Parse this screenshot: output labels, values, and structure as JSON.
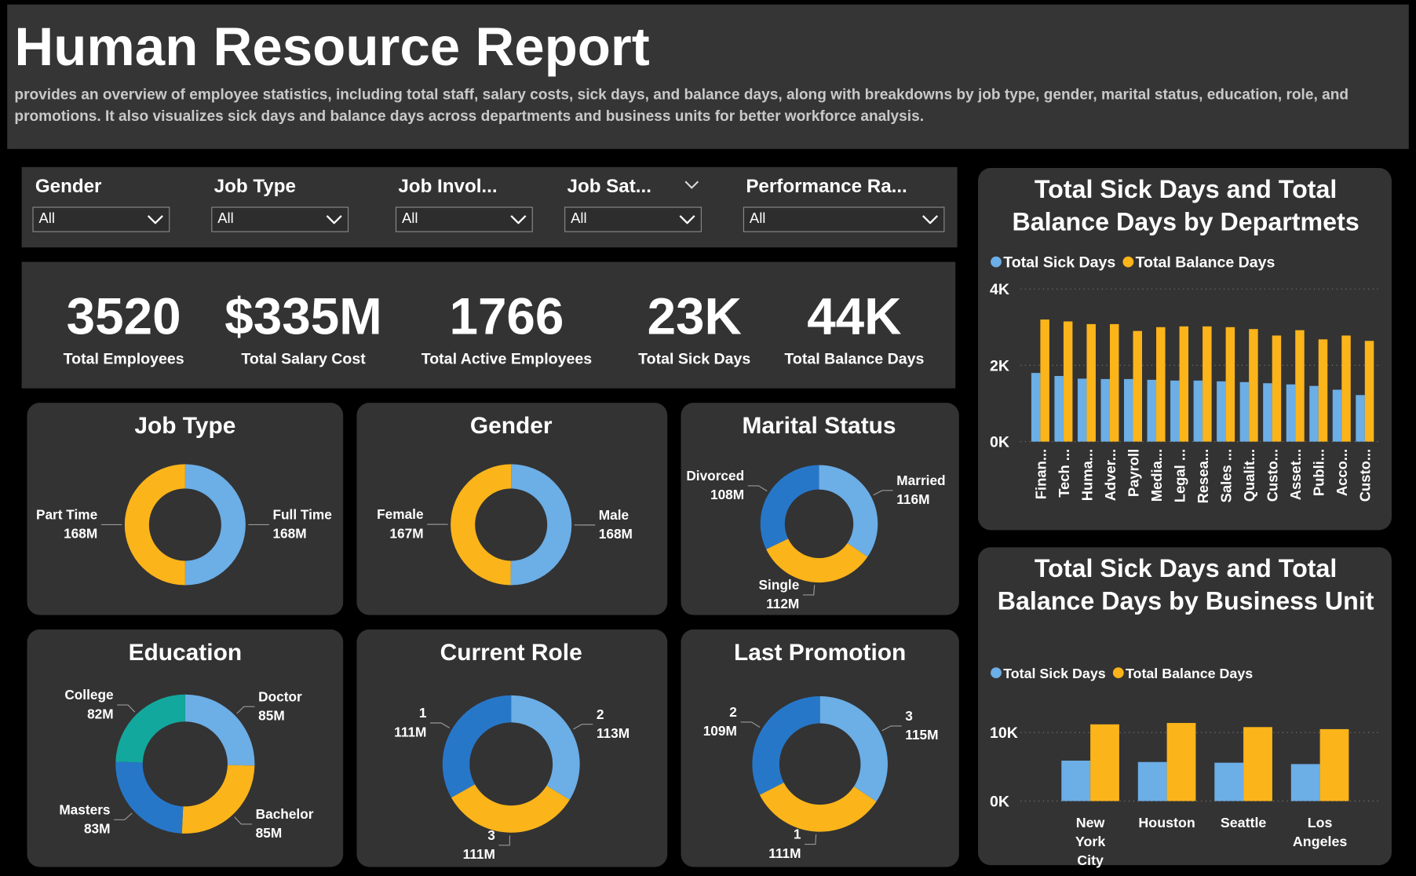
{
  "header": {
    "title": "Human Resource Report",
    "description": "provides an overview of employee statistics, including total staff, salary costs, sick days, and balance days, along with breakdowns by job type, gender, marital status, education, role, and promotions. It also visualizes sick days and balance days across departments and business units for better workforce analysis."
  },
  "filters": [
    {
      "label": "Gender",
      "value": "All"
    },
    {
      "label": "Job Type",
      "value": "All"
    },
    {
      "label": "Job Invol...",
      "value": "All"
    },
    {
      "label": "Job Sat...",
      "value": "All"
    },
    {
      "label": "Performance Ra...",
      "value": "All"
    }
  ],
  "kpis": [
    {
      "value": 3520,
      "label": "Total Employees"
    },
    {
      "value": "$335M",
      "label": "Total Salary Cost"
    },
    {
      "value": 1766,
      "label": "Total Active Employees"
    },
    {
      "value": "23K",
      "label": "Total Sick Days"
    },
    {
      "value": "44K",
      "label": "Total Balance Days"
    }
  ],
  "chart_data": [
    {
      "type": "donut",
      "title": "Job Type",
      "categories": [
        "Full Time",
        "Part Time"
      ],
      "values": [
        168,
        168
      ],
      "value_labels": [
        "168M",
        "168M"
      ],
      "colors": [
        "#6caee6",
        "#fbb41a"
      ]
    },
    {
      "type": "donut",
      "title": "Gender",
      "categories": [
        "Male",
        "Female"
      ],
      "values": [
        168,
        167
      ],
      "value_labels": [
        "168M",
        "167M"
      ],
      "colors": [
        "#6caee6",
        "#fbb41a"
      ]
    },
    {
      "type": "donut",
      "title": "Marital Status",
      "categories": [
        "Married",
        "Single",
        "Divorced"
      ],
      "values": [
        116,
        112,
        108
      ],
      "value_labels": [
        "116M",
        "112M",
        "108M"
      ],
      "colors": [
        "#6caee6",
        "#fbb41a",
        "#2777c9"
      ]
    },
    {
      "type": "donut",
      "title": "Education",
      "categories": [
        "Doctor",
        "Bachelor",
        "Masters",
        "College"
      ],
      "values": [
        85,
        85,
        83,
        82
      ],
      "value_labels": [
        "85M",
        "85M",
        "83M",
        "82M"
      ],
      "colors": [
        "#6caee6",
        "#fbb41a",
        "#2777c9",
        "#13a89e"
      ]
    },
    {
      "type": "donut",
      "title": "Current Role",
      "categories": [
        "2",
        "3",
        "1"
      ],
      "values": [
        113,
        111,
        111
      ],
      "value_labels": [
        "113M",
        "111M",
        "111M"
      ],
      "colors": [
        "#6caee6",
        "#fbb41a",
        "#2777c9"
      ]
    },
    {
      "type": "donut",
      "title": "Last Promotion",
      "categories": [
        "3",
        "1",
        "2"
      ],
      "values": [
        115,
        111,
        109
      ],
      "value_labels": [
        "115M",
        "111M",
        "109M"
      ],
      "colors": [
        "#6caee6",
        "#fbb41a",
        "#2777c9"
      ]
    },
    {
      "type": "bar",
      "title": "Total Sick Days and Total Balance Days by Departmets",
      "categories": [
        "Finan...",
        "Tech ...",
        "Huma...",
        "Adver...",
        "Payroll",
        "Media...",
        "Legal ...",
        "Resea...",
        "Sales ...",
        "Qualit...",
        "Custo...",
        "Asset...",
        "Publi...",
        "Acco...",
        "Custo..."
      ],
      "series": [
        {
          "name": "Total Sick Days",
          "color": "#6caee6",
          "values": [
            1800,
            1720,
            1650,
            1640,
            1640,
            1620,
            1600,
            1600,
            1580,
            1560,
            1530,
            1500,
            1460,
            1360,
            1220
          ]
        },
        {
          "name": "Total Balance Days",
          "color": "#fbb41a",
          "values": [
            3200,
            3150,
            3080,
            3080,
            2900,
            3000,
            3020,
            3020,
            3000,
            2950,
            2780,
            2920,
            2680,
            2780,
            2640
          ]
        }
      ],
      "ylim": [
        0,
        4000
      ],
      "yticks": [
        {
          "value": 0,
          "label": "0K"
        },
        {
          "value": 2000,
          "label": "2K"
        },
        {
          "value": 4000,
          "label": "4K"
        }
      ],
      "grid": true,
      "legend": "top-left"
    },
    {
      "type": "bar",
      "title": "Total Sick Days and Total Balance Days by Business Unit",
      "categories": [
        "New York City",
        "Houston",
        "Seattle",
        "Los Angeles"
      ],
      "series": [
        {
          "name": "Total Sick Days",
          "color": "#6caee6",
          "values": [
            5900,
            5700,
            5600,
            5400
          ]
        },
        {
          "name": "Total Balance Days",
          "color": "#fbb41a",
          "values": [
            11200,
            11400,
            10800,
            10500
          ]
        }
      ],
      "ylim": [
        0,
        12000
      ],
      "yticks": [
        {
          "value": 0,
          "label": "0K"
        },
        {
          "value": 10000,
          "label": "10K"
        }
      ],
      "grid": true,
      "legend": "top-left"
    }
  ]
}
